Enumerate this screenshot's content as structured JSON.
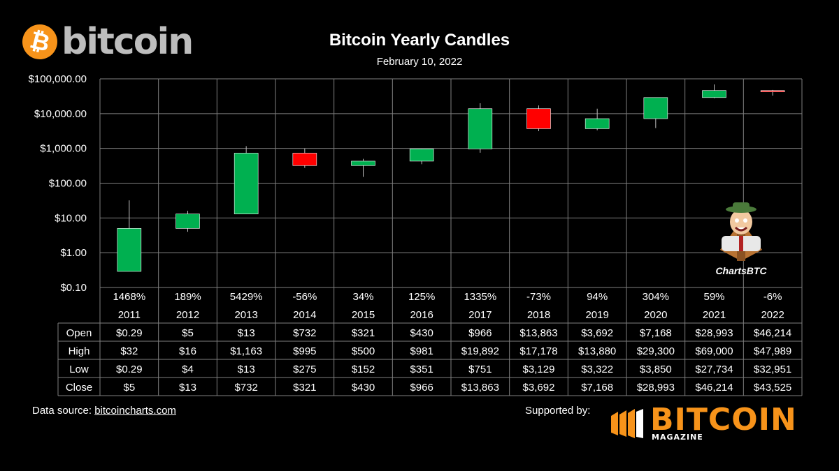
{
  "header": {
    "logo_word": "bitcoin",
    "title": "Bitcoin Yearly Candles",
    "date": "February 10, 2022"
  },
  "watermark": {
    "label": "ChartsBTC"
  },
  "footer": {
    "source_prefix": "Data source: ",
    "source_link": "bitcoincharts.com",
    "supported_by": "Supported by:",
    "sponsor_word": "BITCOIN",
    "sponsor_sub": "MAGAZINE"
  },
  "colors": {
    "up": "#00b050",
    "down": "#ff0000",
    "grid": "#7f7f7f",
    "wick": "#bfbfbf",
    "brand": "#f7931a"
  },
  "chart_data": {
    "type": "candlestick",
    "title": "Bitcoin Yearly Candles",
    "subtitle": "February 10, 2022",
    "y_scale": "log",
    "ylim": [
      0.1,
      100000
    ],
    "y_ticks": [
      0.1,
      1,
      10,
      100,
      1000,
      10000,
      100000
    ],
    "y_tick_labels": [
      "$0.10",
      "$1.00",
      "$10.00",
      "$100.00",
      "$1,000.00",
      "$10,000.00",
      "$100,000.00"
    ],
    "grid": true,
    "categories": [
      "2011",
      "2012",
      "2013",
      "2014",
      "2015",
      "2016",
      "2017",
      "2018",
      "2019",
      "2020",
      "2021",
      "2022"
    ],
    "pct_change": [
      "1468%",
      "189%",
      "5429%",
      "-56%",
      "34%",
      "125%",
      "1335%",
      "-73%",
      "94%",
      "304%",
      "59%",
      "-6%"
    ],
    "open": [
      0.29,
      5,
      13,
      732,
      321,
      430,
      966,
      13863,
      3692,
      7168,
      28993,
      46214
    ],
    "high": [
      32,
      16,
      1163,
      995,
      500,
      981,
      19892,
      17178,
      13880,
      29300,
      69000,
      47989
    ],
    "low": [
      0.29,
      4,
      13,
      275,
      152,
      351,
      751,
      3129,
      3322,
      3850,
      27734,
      32951
    ],
    "close": [
      5,
      13,
      732,
      321,
      430,
      966,
      13863,
      3692,
      7168,
      28993,
      46214,
      43525
    ],
    "table": {
      "row_labels": [
        "Open",
        "High",
        "Low",
        "Close"
      ],
      "rows": [
        [
          "$0.29",
          "$5",
          "$13",
          "$732",
          "$321",
          "$430",
          "$966",
          "$13,863",
          "$3,692",
          "$7,168",
          "$28,993",
          "$46,214"
        ],
        [
          "$32",
          "$16",
          "$1,163",
          "$995",
          "$500",
          "$981",
          "$19,892",
          "$17,178",
          "$13,880",
          "$29,300",
          "$69,000",
          "$47,989"
        ],
        [
          "$0.29",
          "$4",
          "$13",
          "$275",
          "$152",
          "$351",
          "$751",
          "$3,129",
          "$3,322",
          "$3,850",
          "$27,734",
          "$32,951"
        ],
        [
          "$5",
          "$13",
          "$732",
          "$321",
          "$430",
          "$966",
          "$13,863",
          "$3,692",
          "$7,168",
          "$28,993",
          "$46,214",
          "$43,525"
        ]
      ]
    }
  }
}
